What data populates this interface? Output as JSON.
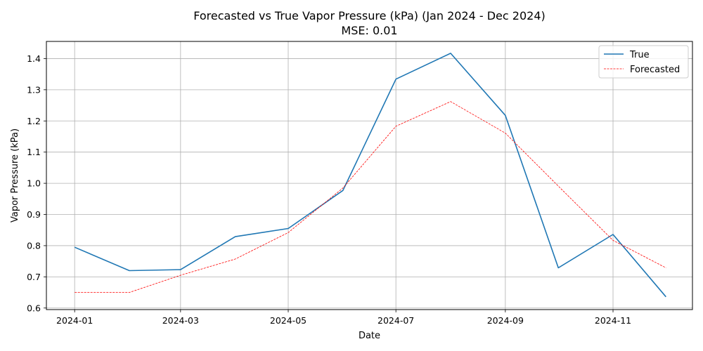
{
  "chart_data": {
    "type": "line",
    "title": "Forecasted vs True Vapor Pressure (kPa) (Jan 2024 - Dec 2024)",
    "subtitle": "MSE: 0.01",
    "xlabel": "Date",
    "ylabel": "Vapor Pressure (kPa)",
    "x": [
      "2024-01-01",
      "2024-02-01",
      "2024-03-01",
      "2024-04-01",
      "2024-05-01",
      "2024-06-01",
      "2024-07-01",
      "2024-08-01",
      "2024-09-01",
      "2024-10-01",
      "2024-11-01",
      "2024-12-01"
    ],
    "xlim": [
      "2023-12-16",
      "2024-12-16"
    ],
    "ylim": [
      0.595,
      1.455
    ],
    "x_ticks": [
      "2024-01",
      "2024-03",
      "2024-05",
      "2024-07",
      "2024-09",
      "2024-11"
    ],
    "y_ticks": [
      "0.6",
      "0.7",
      "0.8",
      "0.9",
      "1.0",
      "1.1",
      "1.2",
      "1.3",
      "1.4"
    ],
    "grid": true,
    "legend_position": "top-right",
    "series": [
      {
        "name": "True",
        "color": "#1f77b4",
        "style": "solid",
        "values": [
          0.795,
          0.72,
          0.723,
          0.829,
          0.855,
          0.977,
          1.334,
          1.417,
          1.218,
          0.729,
          0.836,
          0.636
        ]
      },
      {
        "name": "Forecasted",
        "color": "#ff0000",
        "style": "dashed",
        "values": [
          0.65,
          0.65,
          0.705,
          0.757,
          0.842,
          0.985,
          1.183,
          1.262,
          1.161,
          0.991,
          0.817,
          0.729
        ]
      }
    ]
  }
}
